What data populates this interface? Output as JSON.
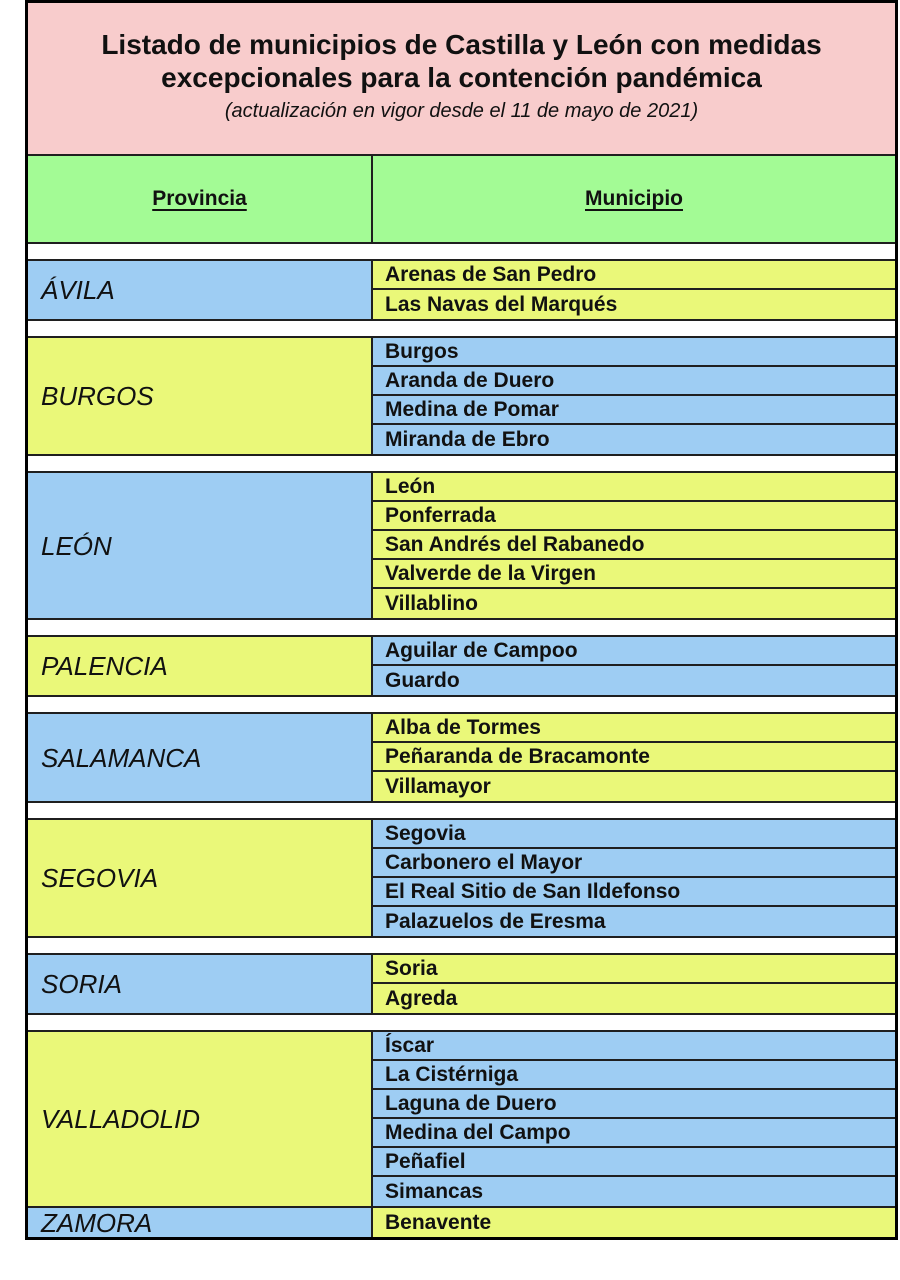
{
  "title": {
    "line1": "Listado de municipios de Castilla y León con medidas",
    "line2": "excepcionales para la contención pandémica",
    "subtitle": "(actualización en vigor desde el 11 de mayo de 2021)"
  },
  "columns": {
    "province": "Provincia",
    "municipality": "Municipio"
  },
  "groups": [
    {
      "province": "ÁVILA",
      "municipalities": [
        "Arenas de San Pedro",
        "Las Navas del Marqués"
      ]
    },
    {
      "province": "BURGOS",
      "municipalities": [
        "Burgos",
        "Aranda de Duero",
        "Medina de Pomar",
        "Miranda de Ebro"
      ]
    },
    {
      "province": "LEÓN",
      "municipalities": [
        "León",
        "Ponferrada",
        "San Andrés del Rabanedo",
        "Valverde de la Virgen",
        "Villablino"
      ]
    },
    {
      "province": "PALENCIA",
      "municipalities": [
        "Aguilar de Campoo",
        "Guardo"
      ]
    },
    {
      "province": "SALAMANCA",
      "municipalities": [
        "Alba de Tormes",
        "Peñaranda de Bracamonte",
        "Villamayor"
      ]
    },
    {
      "province": "SEGOVIA",
      "municipalities": [
        "Segovia",
        "Carbonero el Mayor",
        "El Real Sitio de San Ildefonso",
        "Palazuelos de Eresma"
      ]
    },
    {
      "province": "SORIA",
      "municipalities": [
        "Soria",
        "Agreda"
      ]
    },
    {
      "province": "VALLADOLID",
      "municipalities": [
        "Íscar",
        "La Cistérniga",
        "Laguna de Duero",
        "Medina del Campo",
        "Peñafiel",
        "Simancas"
      ]
    },
    {
      "province": "ZAMORA",
      "municipalities": [
        "Benavente"
      ]
    }
  ],
  "colors": {
    "pink": "#F8CCCC",
    "green": "#A3FB95",
    "blue": "#9ECDF3",
    "yellow": "#EAF879",
    "line": "#1f1f1f",
    "frame": "#000000",
    "text": "#111111"
  }
}
